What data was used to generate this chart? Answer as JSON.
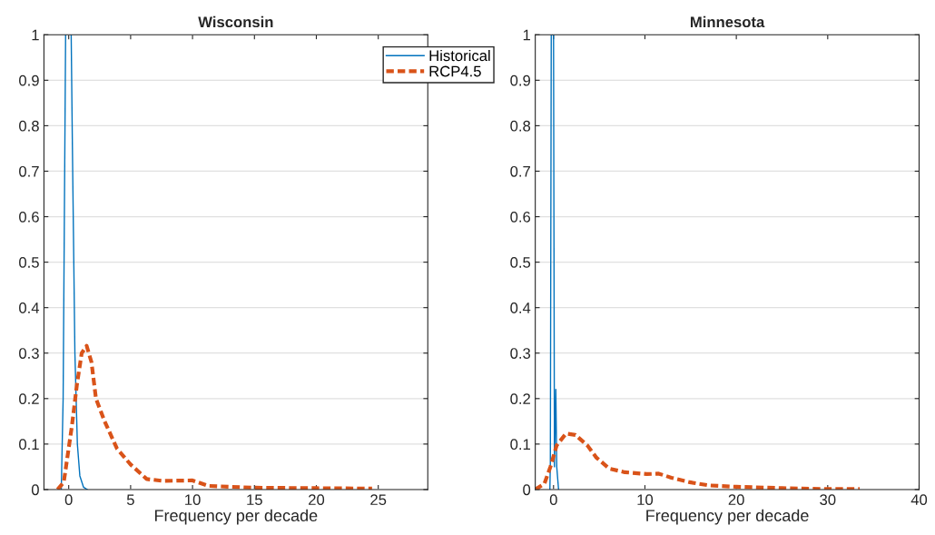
{
  "chart_data": [
    {
      "type": "line",
      "title": "Wisconsin",
      "xlabel": "Frequency per decade",
      "xlim": [
        -2,
        29
      ],
      "xticks": [
        0,
        5,
        10,
        15,
        20,
        25
      ],
      "ylim": [
        0,
        1
      ],
      "yticks": [
        0,
        0.1,
        0.2,
        0.3,
        0.4,
        0.5,
        0.6,
        0.7,
        0.8,
        0.9,
        1
      ],
      "grid": "y",
      "legend": "top right",
      "series": [
        {
          "name": "Historical",
          "color": "#0072bd",
          "line_style": "solid",
          "x": [
            -0.6,
            -0.45,
            -0.3,
            -0.25,
            0,
            0.2,
            0.3,
            0.5,
            0.7,
            0.9,
            1.2,
            1.5
          ],
          "values": [
            0,
            0.2,
            0.8,
            1,
            null,
            1,
            0.75,
            0.3,
            0.1,
            0.03,
            0.005,
            0
          ]
        },
        {
          "name": "RCP4.5",
          "color": "#d95319",
          "line_style": "dashed",
          "x": [
            -0.9,
            -0.4,
            0.26,
            0.66,
            1.05,
            1.45,
            1.84,
            2.2,
            2.9,
            3.9,
            5,
            6.3,
            7.6,
            10,
            11.3,
            15,
            20,
            24.5
          ],
          "values": [
            0,
            0.016,
            0.14,
            0.23,
            0.3,
            0.316,
            0.28,
            0.2,
            0.15,
            0.09,
            0.055,
            0.023,
            0.019,
            0.02,
            0.008,
            0.004,
            0.003,
            0.002
          ]
        }
      ]
    },
    {
      "type": "line",
      "title": "Minnesota",
      "xlabel": "Frequency per decade",
      "xlim": [
        -2,
        40
      ],
      "xticks": [
        0,
        10,
        20,
        30,
        40
      ],
      "ylim": [
        0,
        1
      ],
      "yticks": [
        0,
        0.1,
        0.2,
        0.3,
        0.4,
        0.5,
        0.6,
        0.7,
        0.8,
        0.9,
        1
      ],
      "grid": "y",
      "series": [
        {
          "color": "#0072bd",
          "line_style": "solid",
          "x": [
            -0.4,
            -0.35,
            -0.25,
            0,
            0.1,
            0.25,
            0.35,
            0.55
          ],
          "values": [
            0,
            0.06,
            1,
            1,
            0.05,
            0.22,
            0.05,
            0
          ]
        },
        {
          "color": "#d95319",
          "line_style": "dashed",
          "x": [
            -2,
            -1,
            -0.34,
            0.34,
            1.36,
            2.4,
            3.7,
            4.7,
            6.1,
            7.8,
            10.2,
            11.5,
            12.9,
            14.9,
            17,
            20,
            25,
            30.2,
            33.5
          ],
          "values": [
            0,
            0.013,
            0.05,
            0.097,
            0.123,
            0.12,
            0.097,
            0.07,
            0.046,
            0.038,
            0.034,
            0.035,
            0.026,
            0.016,
            0.009,
            0.006,
            0.003,
            0.001,
            0.001
          ]
        }
      ]
    }
  ]
}
